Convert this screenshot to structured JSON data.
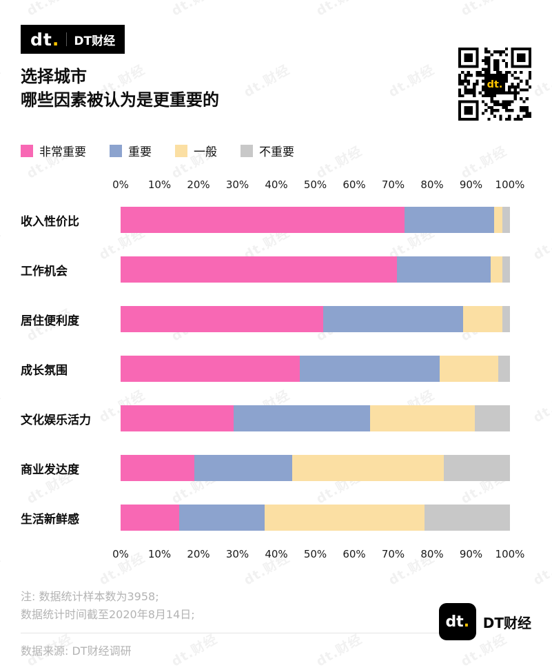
{
  "colors": {
    "brand_black": "#000000",
    "brand_yellow": "#FFC400",
    "very_important": "#F868B4",
    "important": "#8CA3CE",
    "neutral": "#FBDFA3",
    "not_important": "#C8C8C8",
    "note_gray": "#B3B3B3"
  },
  "header": {
    "brand": {
      "logo_letters": "dt",
      "logo_dot": ".",
      "name": "DT财经"
    },
    "title_line1": "选择城市",
    "title_line2": "哪些因素被认为是更重要的"
  },
  "legend": [
    {
      "key": "very-important",
      "label": "非常重要",
      "color": "#F868B4"
    },
    {
      "key": "important",
      "label": "重要",
      "color": "#8CA3CE"
    },
    {
      "key": "neutral",
      "label": "一般",
      "color": "#FBDFA3"
    },
    {
      "key": "not-important",
      "label": "不重要",
      "color": "#C8C8C8"
    }
  ],
  "chart_data": {
    "type": "bar",
    "orientation": "horizontal",
    "stacked": true,
    "unit": "%",
    "title": "选择城市 哪些因素被认为是更重要的",
    "categories": [
      "收入性价比",
      "工作机会",
      "居住便利度",
      "成长氛围",
      "文化娱乐活力",
      "商业发达度",
      "生活新鲜感"
    ],
    "series": [
      {
        "key": "very-important",
        "name": "非常重要",
        "color": "#F868B4",
        "values": [
          73,
          71,
          52,
          46,
          29,
          19,
          15
        ]
      },
      {
        "key": "important",
        "name": "重要",
        "color": "#8CA3CE",
        "values": [
          23,
          24,
          36,
          36,
          35,
          25,
          22
        ]
      },
      {
        "key": "neutral",
        "name": "一般",
        "color": "#FBDFA3",
        "values": [
          2,
          3,
          10,
          15,
          27,
          39,
          41
        ]
      },
      {
        "key": "not-important",
        "name": "不重要",
        "color": "#C8C8C8",
        "values": [
          2,
          2,
          2,
          3,
          9,
          17,
          22
        ]
      }
    ],
    "x_ticks": [
      "0%",
      "10%",
      "20%",
      "30%",
      "40%",
      "50%",
      "60%",
      "70%",
      "80%",
      "90%",
      "100%"
    ],
    "xlim": [
      0,
      100
    ],
    "legend_position": "top",
    "grid": false
  },
  "footer": {
    "note1": "注: 数据统计样本数为3958;",
    "note2": "数据统计时间截至2020年8月14日;",
    "source": "数据来源: DT财经调研",
    "brand": {
      "logo_letters": "dt",
      "logo_dot": ".",
      "name": "DT财经"
    }
  },
  "watermark": {
    "text": "dt.财经"
  }
}
